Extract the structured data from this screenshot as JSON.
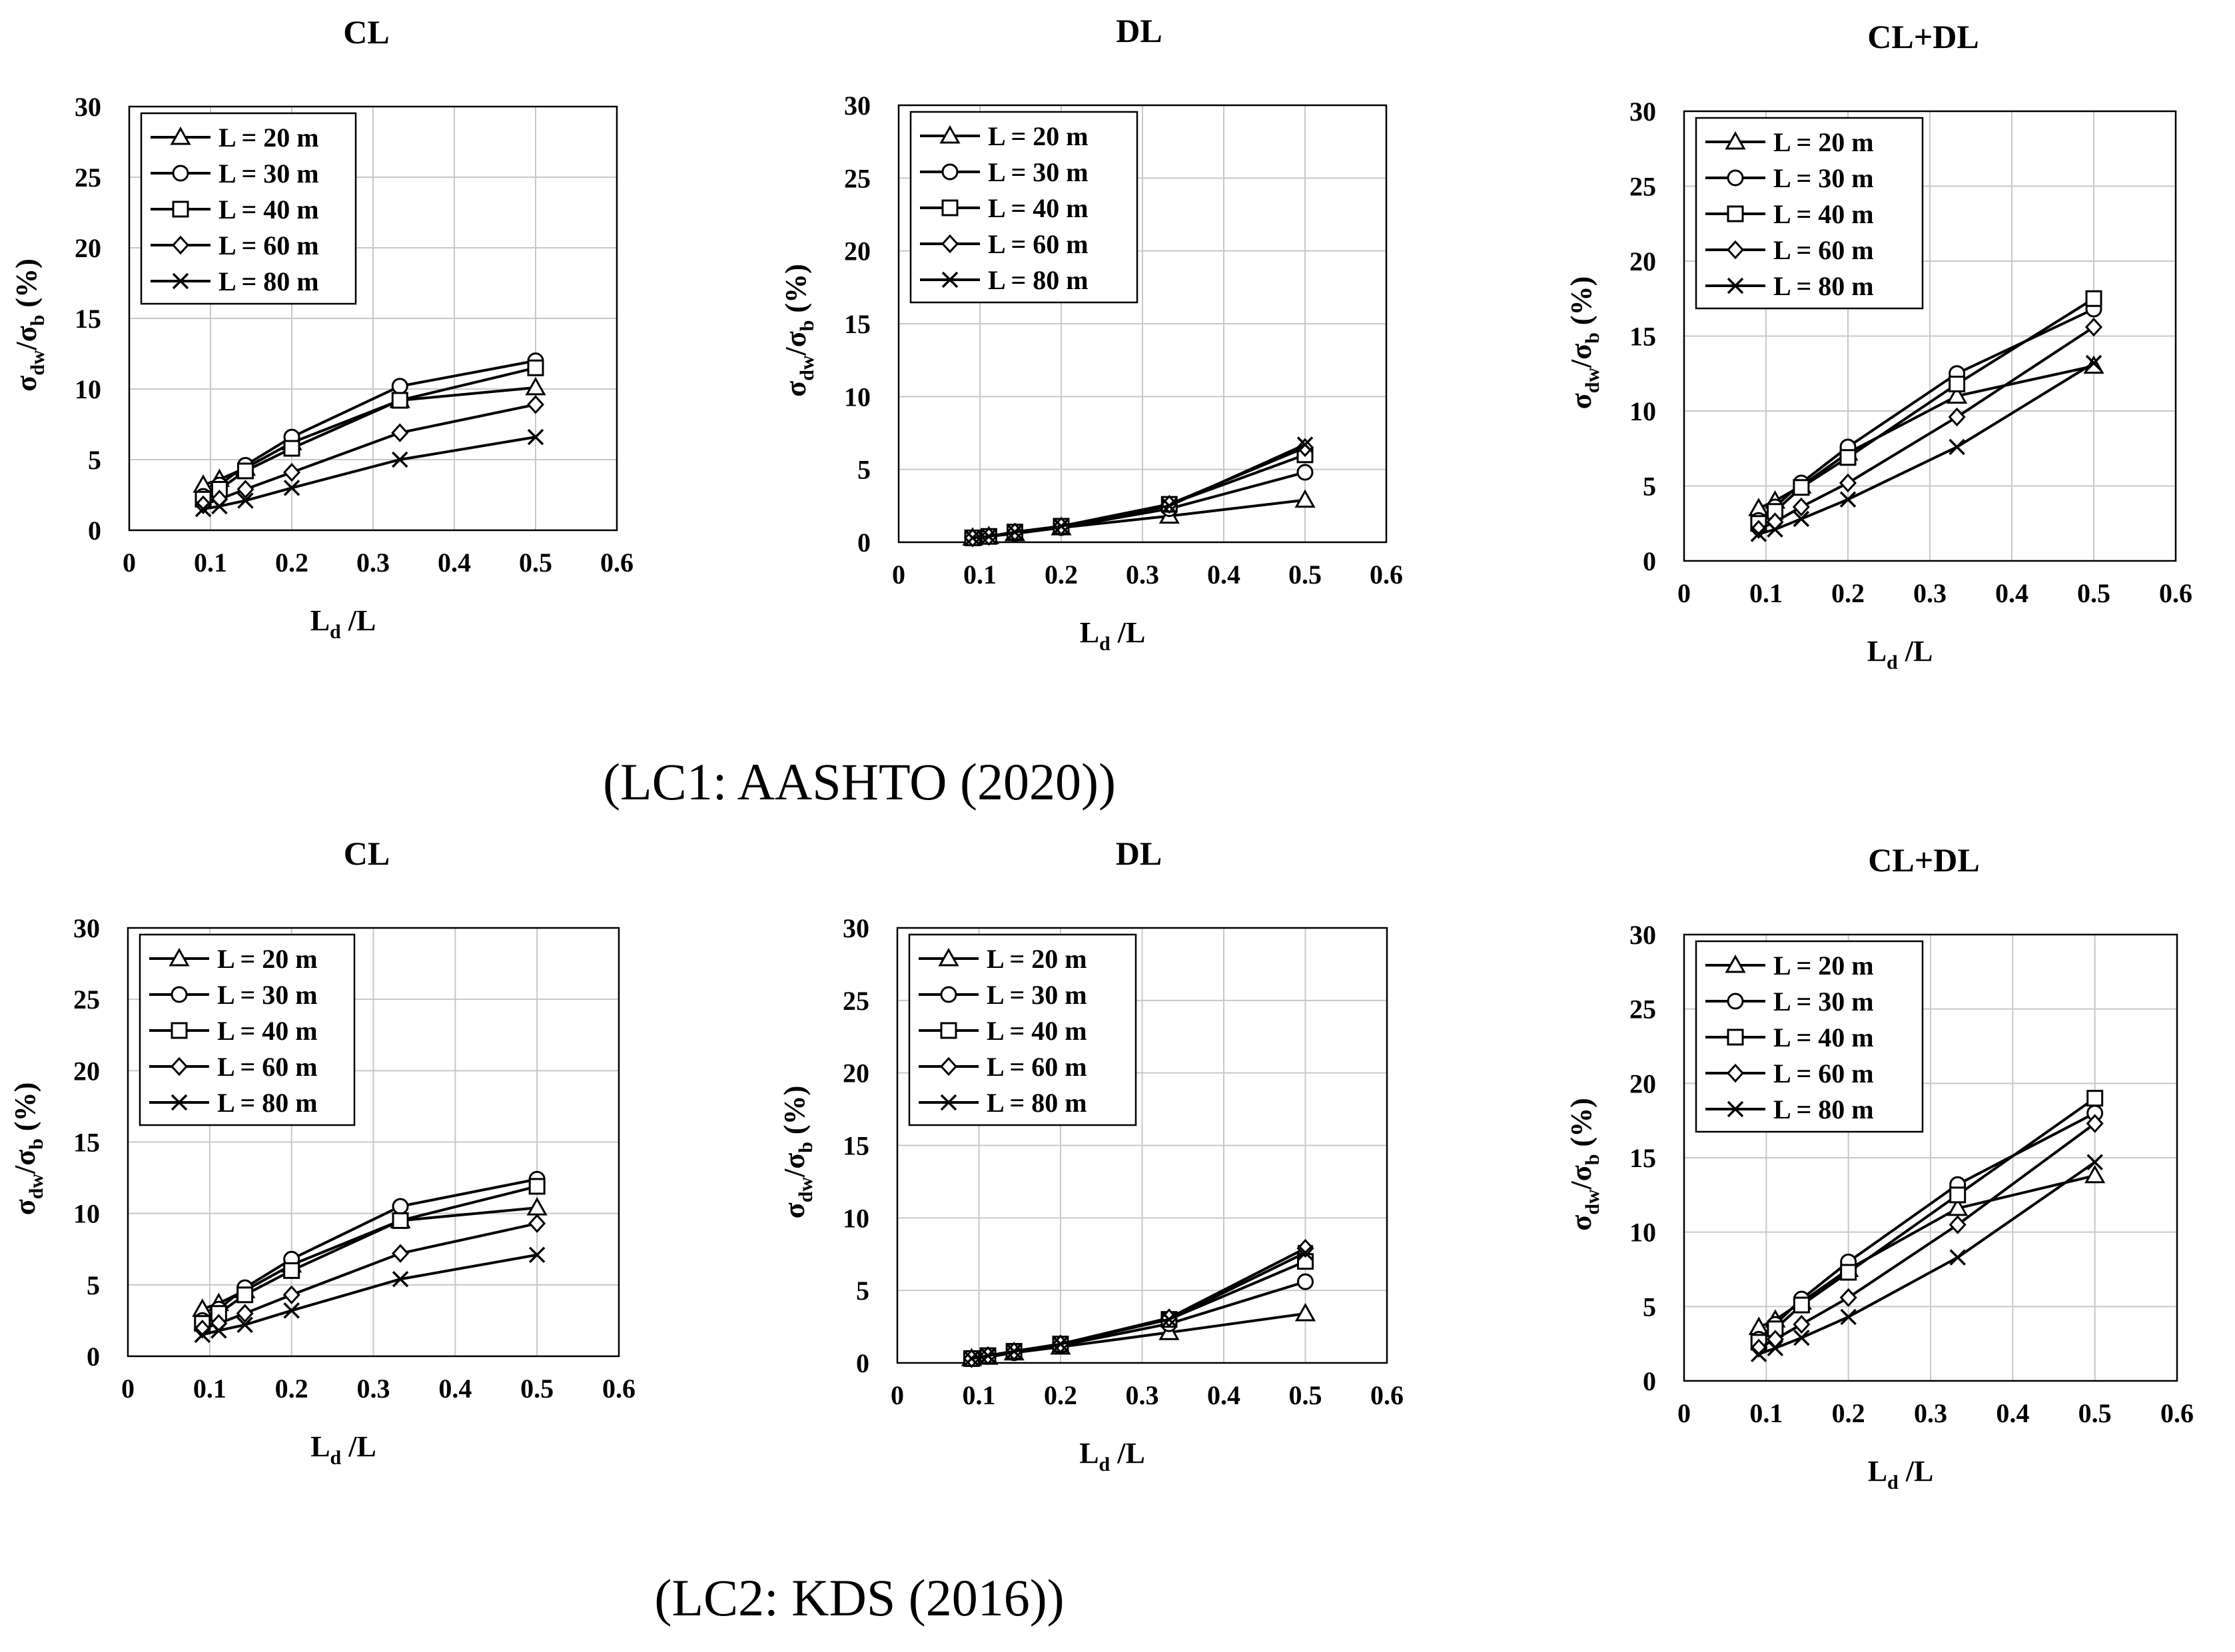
{
  "figure": {
    "captions": [
      "(LC1: AASHTO (2020))",
      "(LC2: KDS (2016))"
    ]
  },
  "chart_data": [
    {
      "type": "line",
      "group": "LC1: AASHTO (2020)",
      "title": "CL",
      "xlabel": "Ld/L",
      "ylabel": "σdw/σb (%)",
      "xlim": [
        0,
        0.6
      ],
      "ylim": [
        0,
        30
      ],
      "xticks": [
        "0",
        "0.1",
        "0.2",
        "0.3",
        "0.4",
        "0.5",
        "0.6"
      ],
      "yticks": [
        "0",
        "5",
        "10",
        "15",
        "20",
        "25",
        "30"
      ],
      "legend_position": "top-left",
      "x": [
        0.091,
        0.111,
        0.143,
        0.2,
        0.333,
        0.5
      ],
      "series": [
        {
          "name": "L = 20 m",
          "marker": "triangle",
          "values": [
            3.2,
            3.6,
            4.4,
            6.2,
            9.2,
            10.1
          ]
        },
        {
          "name": "L = 30 m",
          "marker": "circle",
          "values": [
            2.4,
            3.2,
            4.6,
            6.6,
            10.2,
            12.0
          ]
        },
        {
          "name": "L = 40 m",
          "marker": "square",
          "values": [
            2.2,
            2.9,
            4.2,
            5.8,
            9.2,
            11.5
          ]
        },
        {
          "name": "L = 60 m",
          "marker": "diamond",
          "values": [
            1.8,
            2.2,
            2.9,
            4.1,
            6.9,
            8.9
          ]
        },
        {
          "name": "L = 80 m",
          "marker": "x",
          "values": [
            1.5,
            1.7,
            2.1,
            3.0,
            5.0,
            6.6
          ]
        }
      ]
    },
    {
      "type": "line",
      "group": "LC1: AASHTO (2020)",
      "title": "DL",
      "xlabel": "Ld/L",
      "ylabel": "σdw/σb (%)",
      "xlim": [
        0,
        0.6
      ],
      "ylim": [
        0,
        30
      ],
      "xticks": [
        "0",
        "0.1",
        "0.2",
        "0.3",
        "0.4",
        "0.5",
        "0.6"
      ],
      "yticks": [
        "0",
        "5",
        "10",
        "15",
        "20",
        "25",
        "30"
      ],
      "legend_position": "top-left",
      "x": [
        0.091,
        0.111,
        0.143,
        0.2,
        0.333,
        0.5
      ],
      "series": [
        {
          "name": "L = 20 m",
          "marker": "triangle",
          "values": [
            0.3,
            0.4,
            0.6,
            1.0,
            1.8,
            2.9
          ]
        },
        {
          "name": "L = 30 m",
          "marker": "circle",
          "values": [
            0.3,
            0.4,
            0.6,
            1.0,
            2.3,
            4.8
          ]
        },
        {
          "name": "L = 40 m",
          "marker": "square",
          "values": [
            0.3,
            0.4,
            0.7,
            1.1,
            2.6,
            6.0
          ]
        },
        {
          "name": "L = 60 m",
          "marker": "diamond",
          "values": [
            0.3,
            0.4,
            0.7,
            1.1,
            2.6,
            6.5
          ]
        },
        {
          "name": "L = 80 m",
          "marker": "x",
          "values": [
            0.3,
            0.4,
            0.7,
            1.1,
            2.5,
            6.7
          ]
        }
      ]
    },
    {
      "type": "line",
      "group": "LC1: AASHTO (2020)",
      "title": "CL+DL",
      "xlabel": "Ld/L",
      "ylabel": "σdw/σb (%)",
      "xlim": [
        0,
        0.6
      ],
      "ylim": [
        0,
        30
      ],
      "xticks": [
        "0",
        "0.1",
        "0.2",
        "0.3",
        "0.4",
        "0.5",
        "0.6"
      ],
      "yticks": [
        "0",
        "5",
        "10",
        "15",
        "20",
        "25",
        "30"
      ],
      "legend_position": "top-left",
      "x": [
        0.091,
        0.111,
        0.143,
        0.2,
        0.333,
        0.5
      ],
      "series": [
        {
          "name": "L = 20 m",
          "marker": "triangle",
          "values": [
            3.5,
            4.0,
            5.0,
            7.2,
            11.0,
            13.0
          ]
        },
        {
          "name": "L = 30 m",
          "marker": "circle",
          "values": [
            2.7,
            3.6,
            5.2,
            7.6,
            12.5,
            16.8
          ]
        },
        {
          "name": "L = 40 m",
          "marker": "square",
          "values": [
            2.5,
            3.3,
            4.9,
            6.9,
            11.8,
            17.5
          ]
        },
        {
          "name": "L = 60 m",
          "marker": "diamond",
          "values": [
            2.1,
            2.6,
            3.6,
            5.2,
            9.6,
            15.6
          ]
        },
        {
          "name": "L = 80 m",
          "marker": "x",
          "values": [
            1.8,
            2.1,
            2.8,
            4.1,
            7.6,
            13.2
          ]
        }
      ]
    },
    {
      "type": "line",
      "group": "LC2: KDS (2016)",
      "title": "CL",
      "xlabel": "Ld/L",
      "ylabel": "σdw/σb (%)",
      "xlim": [
        0,
        0.6
      ],
      "ylim": [
        0,
        30
      ],
      "xticks": [
        "0",
        "0.1",
        "0.2",
        "0.3",
        "0.4",
        "0.5",
        "0.6"
      ],
      "yticks": [
        "0",
        "5",
        "10",
        "15",
        "20",
        "25",
        "30"
      ],
      "legend_position": "top-left",
      "x": [
        0.091,
        0.111,
        0.143,
        0.2,
        0.333,
        0.5
      ],
      "series": [
        {
          "name": "L = 20 m",
          "marker": "triangle",
          "values": [
            3.3,
            3.7,
            4.6,
            6.4,
            9.5,
            10.4
          ]
        },
        {
          "name": "L = 30 m",
          "marker": "circle",
          "values": [
            2.5,
            3.3,
            4.8,
            6.8,
            10.5,
            12.4
          ]
        },
        {
          "name": "L = 40 m",
          "marker": "square",
          "values": [
            2.3,
            3.0,
            4.3,
            6.0,
            9.5,
            11.9
          ]
        },
        {
          "name": "L = 60 m",
          "marker": "diamond",
          "values": [
            1.9,
            2.3,
            3.0,
            4.3,
            7.2,
            9.3
          ]
        },
        {
          "name": "L = 80 m",
          "marker": "x",
          "values": [
            1.5,
            1.8,
            2.2,
            3.2,
            5.4,
            7.1
          ]
        }
      ]
    },
    {
      "type": "line",
      "group": "LC2: KDS (2016)",
      "title": "DL",
      "xlabel": "Ld/L",
      "ylabel": "σdw/σb (%)",
      "xlim": [
        0,
        0.6
      ],
      "ylim": [
        0,
        30
      ],
      "xticks": [
        "0",
        "0.1",
        "0.2",
        "0.3",
        "0.4",
        "0.5",
        "0.6"
      ],
      "yticks": [
        "0",
        "5",
        "10",
        "15",
        "20",
        "25",
        "30"
      ],
      "legend_position": "top-left",
      "x": [
        0.091,
        0.111,
        0.143,
        0.2,
        0.333,
        0.5
      ],
      "series": [
        {
          "name": "L = 20 m",
          "marker": "triangle",
          "values": [
            0.3,
            0.4,
            0.7,
            1.1,
            2.1,
            3.4
          ]
        },
        {
          "name": "L = 30 m",
          "marker": "circle",
          "values": [
            0.3,
            0.5,
            0.7,
            1.2,
            2.7,
            5.6
          ]
        },
        {
          "name": "L = 40 m",
          "marker": "square",
          "values": [
            0.3,
            0.5,
            0.8,
            1.3,
            3.0,
            7.0
          ]
        },
        {
          "name": "L = 60 m",
          "marker": "diamond",
          "values": [
            0.3,
            0.5,
            0.8,
            1.3,
            3.1,
            7.9
          ]
        },
        {
          "name": "L = 80 m",
          "marker": "x",
          "values": [
            0.3,
            0.5,
            0.8,
            1.3,
            3.0,
            7.6
          ]
        }
      ]
    },
    {
      "type": "line",
      "group": "LC2: KDS (2016)",
      "title": "CL+DL",
      "xlabel": "Ld/L",
      "ylabel": "σdw/σb (%)",
      "xlim": [
        0,
        0.6
      ],
      "ylim": [
        0,
        30
      ],
      "xticks": [
        "0",
        "0.1",
        "0.2",
        "0.3",
        "0.4",
        "0.5",
        "0.6"
      ],
      "yticks": [
        "0",
        "5",
        "10",
        "15",
        "20",
        "25",
        "30"
      ],
      "legend_position": "top-left",
      "x": [
        0.091,
        0.111,
        0.143,
        0.2,
        0.333,
        0.5
      ],
      "series": [
        {
          "name": "L = 20 m",
          "marker": "triangle",
          "values": [
            3.6,
            4.1,
            5.3,
            7.5,
            11.6,
            13.8
          ]
        },
        {
          "name": "L = 30 m",
          "marker": "circle",
          "values": [
            2.8,
            3.8,
            5.5,
            8.0,
            13.2,
            18.0
          ]
        },
        {
          "name": "L = 40 m",
          "marker": "square",
          "values": [
            2.6,
            3.5,
            5.1,
            7.3,
            12.5,
            19.0
          ]
        },
        {
          "name": "L = 60 m",
          "marker": "diamond",
          "values": [
            2.2,
            2.8,
            3.8,
            5.6,
            10.5,
            17.3
          ]
        },
        {
          "name": "L = 80 m",
          "marker": "x",
          "values": [
            1.8,
            2.2,
            2.9,
            4.3,
            8.3,
            14.7
          ]
        }
      ]
    }
  ]
}
